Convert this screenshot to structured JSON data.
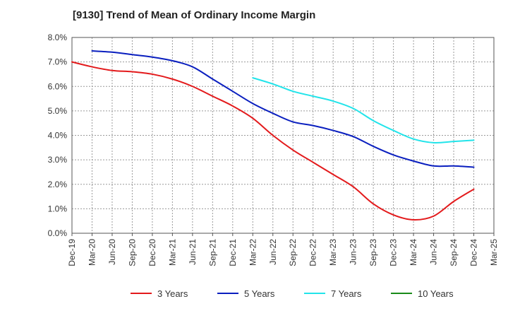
{
  "chart_data": {
    "type": "line",
    "title": "[9130]  Trend of Mean of Ordinary Income Margin",
    "xlabel": "",
    "ylabel": "",
    "x": [
      "Dec-19",
      "Mar-20",
      "Jun-20",
      "Sep-20",
      "Dec-20",
      "Mar-21",
      "Jun-21",
      "Sep-21",
      "Dec-21",
      "Mar-22",
      "Jun-22",
      "Sep-22",
      "Dec-22",
      "Mar-23",
      "Jun-23",
      "Sep-23",
      "Dec-23",
      "Mar-24",
      "Jun-24",
      "Sep-24",
      "Dec-24",
      "Mar-25"
    ],
    "ylim": [
      0,
      8
    ],
    "y_ticks": [
      "0.0%",
      "1.0%",
      "2.0%",
      "3.0%",
      "4.0%",
      "5.0%",
      "6.0%",
      "7.0%",
      "8.0%"
    ],
    "y_tick_values": [
      0,
      1,
      2,
      3,
      4,
      5,
      6,
      7,
      8
    ],
    "grid": true,
    "legend_position": "bottom",
    "series": [
      {
        "name": "3 Years",
        "color": "#e31a1c",
        "values": [
          7.0,
          6.8,
          6.65,
          6.6,
          6.5,
          6.3,
          6.0,
          5.6,
          5.2,
          4.7,
          4.0,
          3.4,
          2.9,
          2.4,
          1.9,
          1.2,
          0.75,
          0.55,
          0.7,
          1.3,
          1.8,
          null
        ]
      },
      {
        "name": "5 Years",
        "color": "#0a1fbf",
        "values": [
          null,
          7.45,
          7.4,
          7.3,
          7.2,
          7.05,
          6.8,
          6.3,
          5.8,
          5.3,
          4.9,
          4.55,
          4.4,
          4.2,
          3.95,
          3.55,
          3.2,
          2.95,
          2.75,
          2.75,
          2.7,
          null
        ]
      },
      {
        "name": "7 Years",
        "color": "#22e4ea",
        "values": [
          null,
          null,
          null,
          null,
          null,
          null,
          null,
          null,
          null,
          6.35,
          6.1,
          5.8,
          5.6,
          5.4,
          5.1,
          4.6,
          4.2,
          3.85,
          3.7,
          3.75,
          3.8,
          null
        ]
      },
      {
        "name": "10 Years",
        "color": "#1a8a1a",
        "values": [
          null,
          null,
          null,
          null,
          null,
          null,
          null,
          null,
          null,
          null,
          null,
          null,
          null,
          null,
          null,
          null,
          null,
          null,
          null,
          null,
          null,
          null
        ]
      }
    ]
  }
}
